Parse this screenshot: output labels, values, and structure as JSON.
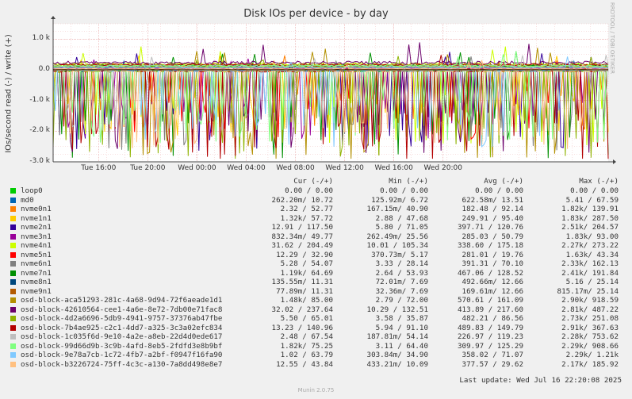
{
  "chart_data": {
    "type": "line",
    "title": "Disk IOs per device - by day",
    "ylabel": "IOs/second read (-) / write (+)",
    "side_label": "RRDTOOL / TOBI OETIKER",
    "ylim": [
      -3000,
      1500
    ],
    "yticks": [
      {
        "v": 1000,
        "label": "1.0 k"
      },
      {
        "v": 0,
        "label": "0.0"
      },
      {
        "v": -1000,
        "label": "-1.0 k"
      },
      {
        "v": -2000,
        "label": "-2.0 k"
      },
      {
        "v": -3000,
        "label": "-3.0 k"
      }
    ],
    "xticks": [
      {
        "t": 0.132,
        "label": "Tue 16:00"
      },
      {
        "t": 0.275,
        "label": "Tue 20:00"
      },
      {
        "t": 0.418,
        "label": "Wed 00:00"
      },
      {
        "t": 0.561,
        "label": "Wed 04:00"
      },
      {
        "t": 0.704,
        "label": "Wed 08:00"
      },
      {
        "t": 0.847,
        "label": "Wed 12:00"
      },
      {
        "t": 0.99,
        "label": "Wed 16:00"
      },
      {
        "t": 1.133,
        "label": "Wed 20:00"
      }
    ],
    "headers": {
      "cur": "Cur (-/+)",
      "min": "Min (-/+)",
      "avg": "Avg (-/+)",
      "max": "Max (-/+)"
    },
    "series": [
      {
        "name": "loop0",
        "color": "#00cc00",
        "cur": "0.00 /    0.00",
        "min": "0.00 /    0.00",
        "avg": "0.00 /    0.00",
        "max": "0.00 /    0.00",
        "read": 0,
        "write": 0
      },
      {
        "name": "md0",
        "color": "#0066b3",
        "cur": "262.20m/   10.72",
        "min": "125.92m/    6.72",
        "avg": "622.58m/   13.51",
        "max": "5.41 /   67.59",
        "read": 0.6,
        "write": 13.51
      },
      {
        "name": "nvme0n1",
        "color": "#ff8000",
        "cur": "2.32 /   52.77",
        "min": "167.15m/   40.90",
        "avg": "182.48 /   92.14",
        "max": "1.82k/  139.91",
        "read": 182.48,
        "write": 92.14
      },
      {
        "name": "nvme1n1",
        "color": "#ffcc00",
        "cur": "1.32k/   57.72",
        "min": "2.88 /   47.68",
        "avg": "249.91 /   95.40",
        "max": "1.83k/  287.50",
        "read": 249.91,
        "write": 95.4
      },
      {
        "name": "nvme2n1",
        "color": "#330099",
        "cur": "12.91 /  117.50",
        "min": "5.80 /   71.05",
        "avg": "397.71 /  120.76",
        "max": "2.51k/  204.57",
        "read": 397.71,
        "write": 120.76
      },
      {
        "name": "nvme3n1",
        "color": "#990099",
        "cur": "832.34m/   49.77",
        "min": "262.49m/   25.56",
        "avg": "285.03 /   50.79",
        "max": "1.83k/   93.00",
        "read": 285.03,
        "write": 50.79
      },
      {
        "name": "nvme4n1",
        "color": "#ccff00",
        "cur": "31.62 /  204.49",
        "min": "10.01 /  105.34",
        "avg": "338.60 /  175.18",
        "max": "2.27k/  273.22",
        "read": 338.6,
        "write": 175.18
      },
      {
        "name": "nvme5n1",
        "color": "#ff0000",
        "cur": "12.29 /   32.90",
        "min": "370.73m/    5.17",
        "avg": "281.01 /   19.76",
        "max": "1.63k/   43.34",
        "read": 281.01,
        "write": 19.76
      },
      {
        "name": "nvme6n1",
        "color": "#808080",
        "cur": "5.28 /   54.07",
        "min": "3.33 /   28.14",
        "avg": "391.31 /   70.10",
        "max": "2.33k/  162.13",
        "read": 391.31,
        "write": 70.1
      },
      {
        "name": "nvme7n1",
        "color": "#008f00",
        "cur": "1.19k/   64.69",
        "min": "2.64 /   53.93",
        "avg": "467.06 /  128.52",
        "max": "2.41k/  191.84",
        "read": 467.06,
        "write": 128.52
      },
      {
        "name": "nvme8n1",
        "color": "#00487d",
        "cur": "135.55m/   11.31",
        "min": "72.01m/    7.69",
        "avg": "492.66m/   12.66",
        "max": "5.16 /   25.14",
        "read": 0.49,
        "write": 12.66
      },
      {
        "name": "nvme9n1",
        "color": "#b35a00",
        "cur": "77.89m/   11.31",
        "min": "32.36m/    7.69",
        "avg": "169.61m/   12.66",
        "max": "815.17m/   25.14",
        "read": 0.17,
        "write": 12.66
      },
      {
        "name": "osd-block-aca51293-281c-4a68-9d94-72f6aeade1d1",
        "color": "#b38f00",
        "cur": "1.48k/   85.00",
        "min": "2.79 /   72.00",
        "avg": "570.61 /  161.09",
        "max": "2.90k/  918.59",
        "read": 570.61,
        "write": 161.09
      },
      {
        "name": "osd-block-42610564-cee1-4a6e-8e72-7db00e71fac8",
        "color": "#6b006b",
        "cur": "32.02 /  237.64",
        "min": "10.29 /  132.51",
        "avg": "413.89 /  217.60",
        "max": "2.81k/  487.22",
        "read": 413.89,
        "write": 217.6
      },
      {
        "name": "osd-block-4d2a6696-5db9-4941-9757-37376ab47fbe",
        "color": "#8fb300",
        "cur": "5.50 /   65.01",
        "min": "3.58 /   35.87",
        "avg": "482.21 /   86.56",
        "max": "2.73k/  251.08",
        "read": 482.21,
        "write": 86.56
      },
      {
        "name": "osd-block-7b4ae925-c2c1-4dd7-a325-3c3a02efc834",
        "color": "#b30000",
        "cur": "13.23 /  140.96",
        "min": "5.94 /   91.10",
        "avg": "489.83 /  149.79",
        "max": "2.91k/  367.63",
        "read": 489.83,
        "write": 149.79
      },
      {
        "name": "osd-block-1c035f6d-9e10-4a2e-a8eb-22d4d0ede617",
        "color": "#bebebe",
        "cur": "2.48 /   67.54",
        "min": "187.81m/   54.14",
        "avg": "226.97 /  119.23",
        "max": "2.28k/  753.62",
        "read": 226.97,
        "write": 119.23
      },
      {
        "name": "osd-block-99d66d9b-3c9b-4afd-8eb5-2fdfd3e8b9bf",
        "color": "#80ff80",
        "cur": "1.82k/   75.25",
        "min": "3.11 /   64.40",
        "avg": "309.97 /  125.29",
        "max": "2.29k/  908.66",
        "read": 309.97,
        "write": 125.29
      },
      {
        "name": "osd-block-9e78a7cb-1c72-4fb7-a2bf-f0947f16fa90",
        "color": "#80c9ff",
        "cur": "1.02 /   63.79",
        "min": "303.84m/   34.90",
        "avg": "358.02 /   71.07",
        "max": "2.29k/    1.21k",
        "read": 358.02,
        "write": 71.07
      },
      {
        "name": "osd-block-b3226724-75ff-4c3c-a130-7a8dd498e8e7",
        "color": "#ffc080",
        "cur": "12.55 /   43.84",
        "min": "433.21m/   10.09",
        "avg": "377.57 /   29.62",
        "max": "2.17k/  185.92",
        "read": 377.57,
        "write": 29.62
      }
    ]
  },
  "footer": {
    "last_update": "Last update: Wed Jul 16 22:20:08 2025",
    "munin": "Munin 2.0.75"
  }
}
